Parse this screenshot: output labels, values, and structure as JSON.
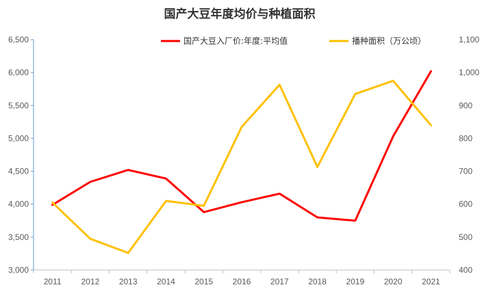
{
  "chart_data": {
    "type": "line",
    "title": "国产大豆年度均价与种植面积",
    "categories": [
      "2011",
      "2012",
      "2013",
      "2014",
      "2015",
      "2016",
      "2017",
      "2018",
      "2019",
      "2020",
      "2021"
    ],
    "series": [
      {
        "name": "国产大豆入厂价:年度:平均值",
        "axis": "left",
        "color": "#ff0000",
        "values": [
          3990,
          4340,
          4520,
          4390,
          3880,
          4030,
          4160,
          3800,
          3750,
          5030,
          6020
        ]
      },
      {
        "name": "播种面积（万公顷）",
        "axis": "right",
        "color": "#ffc000",
        "values": [
          605,
          495,
          452,
          610,
          595,
          835,
          963,
          713,
          935,
          975,
          840
        ]
      }
    ],
    "y_left": {
      "min": 3000,
      "max": 6500,
      "ticks": [
        3000,
        3500,
        4000,
        4500,
        5000,
        5500,
        6000,
        6500
      ],
      "tick_labels": [
        "3,000",
        "3,500",
        "4,000",
        "4,500",
        "5,000",
        "5,500",
        "6,000",
        "6,500"
      ]
    },
    "y_right": {
      "min": 400,
      "max": 1100,
      "ticks": [
        400,
        500,
        600,
        700,
        800,
        900,
        1000,
        1100
      ],
      "tick_labels": [
        "400",
        "500",
        "600",
        "700",
        "800",
        "900",
        "1,000",
        "1,100"
      ]
    },
    "grid": false,
    "legend_position": "top"
  }
}
